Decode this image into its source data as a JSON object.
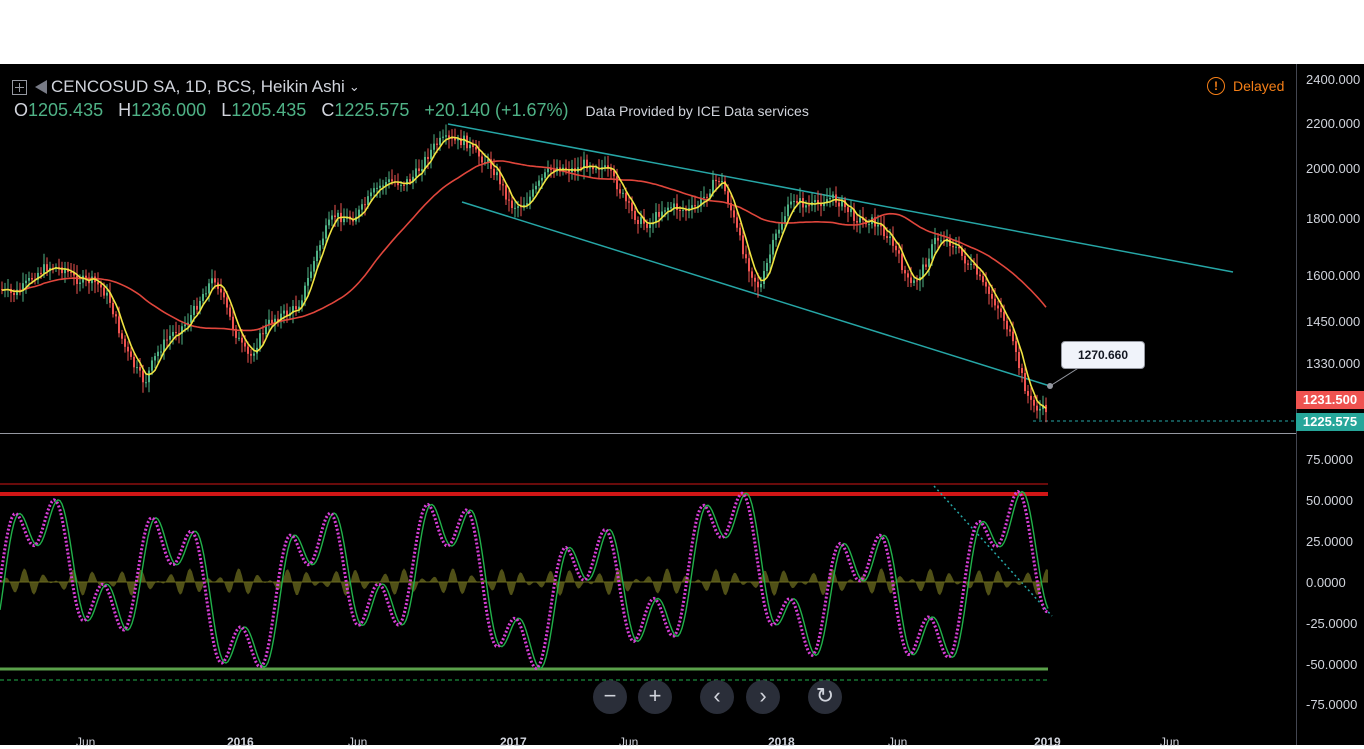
{
  "header": {
    "symbol_title": "CENCOSUD SA, 1D, BCS, Heikin Ashi",
    "dropdown_icon": "chevron-down-icon",
    "expand_icon": "plus-square-icon",
    "flag_icon": "flag-icon"
  },
  "ohlc": {
    "o_label": "O",
    "o_value": "1205.435",
    "h_label": "H",
    "h_value": "1236.000",
    "l_label": "L",
    "l_value": "1205.435",
    "c_label": "C",
    "c_value": "1225.575",
    "change": "+20.140 (+1.67%)",
    "provider": "Data Provided by ICE Data services"
  },
  "status": {
    "delayed_label": "Delayed",
    "delayed_icon": "exclamation-circle-icon"
  },
  "price_axis": [
    "2400.000",
    "2200.000",
    "2000.000",
    "1800.000",
    "1600.000",
    "1450.000",
    "1330.000"
  ],
  "price_tags": {
    "red_tag": "1231.500",
    "green_tag": "1225.575"
  },
  "callout": {
    "value": "1270.660"
  },
  "oscillator_axis": [
    "75.0000",
    "50.0000",
    "25.0000",
    "0.0000",
    "-25.0000",
    "-50.0000",
    "-75.0000"
  ],
  "time_axis": [
    "Jun",
    "2016",
    "Jun",
    "2017",
    "Jun",
    "2018",
    "Jun",
    "2019",
    "Jun"
  ],
  "nav_buttons": {
    "zoom_out": "−",
    "zoom_in": "+",
    "scroll_left": "‹",
    "scroll_right": "›",
    "reset": "↻"
  },
  "colors": {
    "background": "#000000",
    "price_up": "#4fb286",
    "price_down": "#ef5350",
    "fast_ma": "#f0e442",
    "slow_ma": "#e0463c",
    "trendline": "#26a6a6",
    "oscillator": "#d63fd6",
    "osc_signal": "#21b04a",
    "histogram": "#6b6b1f",
    "overbought": "#d11616",
    "oversold": "#5aa04a",
    "delayed": "#f57f17"
  }
}
